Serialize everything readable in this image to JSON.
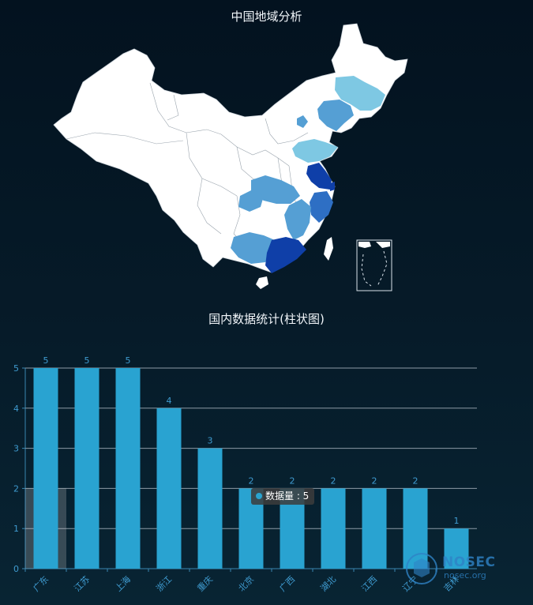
{
  "map": {
    "title": "中国地域分析",
    "colors": {
      "base": "#ffffff",
      "level1": "#7ec8e3",
      "level2": "#559fd4",
      "level3": "#2e6fc4",
      "level4": "#0f3fa8"
    }
  },
  "bar_title": "国内数据统计(柱状图)",
  "tooltip": {
    "label": "数据量 : 5"
  },
  "watermark": {
    "brand": "NOSEC",
    "site": "nosec.org"
  },
  "chart_data": {
    "type": "bar",
    "title": "国内数据统计(柱状图)",
    "categories": [
      "广东",
      "江苏",
      "上海",
      "浙江",
      "重庆",
      "北京",
      "广西",
      "湖北",
      "江西",
      "辽宁",
      "吉林"
    ],
    "series": [
      {
        "name": "数据量",
        "values": [
          5,
          5,
          5,
          4,
          3,
          2,
          2,
          2,
          2,
          2,
          1
        ]
      }
    ],
    "ylim": [
      0,
      5
    ],
    "yticks": [
      0,
      1,
      2,
      3,
      4,
      5
    ],
    "grid": true,
    "bar_color": "#29a3d1",
    "highlighted_category": "广东"
  }
}
